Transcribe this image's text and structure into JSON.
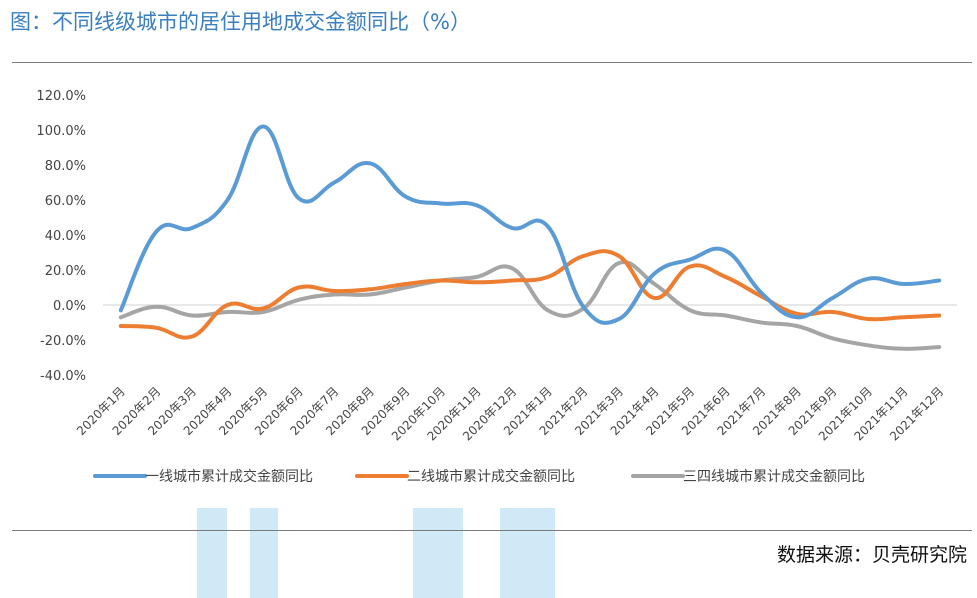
{
  "title": "图：不同线级城市的居住用地成交金额同比（%）",
  "source": "数据来源：贝壳研究院",
  "chart_data": {
    "type": "line",
    "title": "图：不同线级城市的居住用地成交金额同比（%）",
    "xlabel": "",
    "ylabel": "",
    "ylim": [
      -40,
      120
    ],
    "yticks": [
      "120.0%",
      "100.0%",
      "80.0%",
      "60.0%",
      "40.0%",
      "20.0%",
      "0.0%",
      "-20.0%",
      "-40.0%"
    ],
    "ytick_values": [
      120,
      100,
      80,
      60,
      40,
      20,
      0,
      -20,
      -40
    ],
    "categories": [
      "2020年1月",
      "2020年2月",
      "2020年3月",
      "2020年4月",
      "2020年5月",
      "2020年6月",
      "2020年7月",
      "2020年8月",
      "2020年9月",
      "2020年10月",
      "2020年11月",
      "2020年12月",
      "2021年1月",
      "2021年2月",
      "2021年3月",
      "2021年4月",
      "2021年5月",
      "2021年6月",
      "2021年7月",
      "2021年8月",
      "2021年9月",
      "2021年10月",
      "2021年11月",
      "2021年12月"
    ],
    "series": [
      {
        "name": "一线城市累计成交金额同比",
        "color": "#5b9bd5",
        "values": [
          -3,
          42,
          44,
          60,
          102,
          61,
          70,
          81,
          62,
          58,
          57,
          44,
          45,
          -1,
          -8,
          18,
          26,
          31,
          7,
          -7,
          4,
          15,
          12,
          14
        ]
      },
      {
        "name": "二线城市累计成交金额同比",
        "color": "#ed7d31",
        "values": [
          -12,
          -13,
          -18,
          0,
          -2,
          10,
          8,
          9,
          12,
          14,
          13,
          14,
          16,
          28,
          28,
          4,
          22,
          16,
          5,
          -5,
          -4,
          -8,
          -7,
          -6
        ]
      },
      {
        "name": "三四线城市累计成交金额同比",
        "color": "#a5a5a5",
        "values": [
          -7,
          -1,
          -6,
          -4,
          -4,
          3,
          6,
          6,
          10,
          14,
          16,
          21,
          -3,
          -2,
          24,
          12,
          -3,
          -6,
          -10,
          -12,
          -19,
          -23,
          -25,
          -24
        ]
      }
    ],
    "grid": false,
    "zero_line": true,
    "legend": "bottom"
  }
}
